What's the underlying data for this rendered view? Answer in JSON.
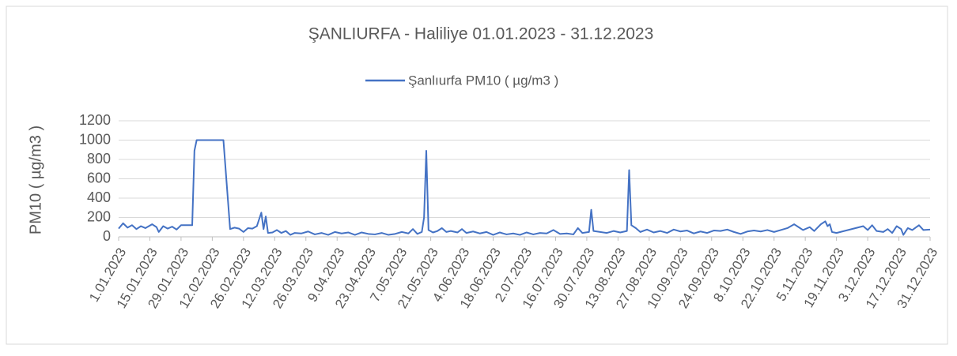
{
  "chart_data": {
    "type": "line",
    "title": "ŞANLIURFA - Haliliye 01.01.2023 - 31.12.2023",
    "ylabel": "PM10 ( µg/m3 )",
    "series": [
      {
        "name": "Şanlıurfa PM10 ( µg/m3 )",
        "color": "#4472c4",
        "x": [
          "1.01.2023",
          "3.01.2023",
          "5.01.2023",
          "7.01.2023",
          "9.01.2023",
          "11.01.2023",
          "13.01.2023",
          "16.01.2023",
          "18.01.2023",
          "19.01.2023",
          "21.01.2023",
          "23.01.2023",
          "25.01.2023",
          "27.01.2023",
          "29.01.2023",
          "1.02.2023",
          "3.02.2023",
          "4.02.2023",
          "5.02.2023",
          "17.02.2023",
          "20.02.2023",
          "22.02.2023",
          "24.02.2023",
          "26.02.2023",
          "28.02.2023",
          "2.03.2023",
          "4.03.2023",
          "6.03.2023",
          "7.03.2023",
          "8.03.2023",
          "9.03.2023",
          "11.03.2023",
          "13.03.2023",
          "15.03.2023",
          "17.03.2023",
          "19.03.2023",
          "21.03.2023",
          "24.03.2023",
          "27.03.2023",
          "30.03.2023",
          "2.04.2023",
          "5.04.2023",
          "8.04.2023",
          "11.04.2023",
          "14.04.2023",
          "17.04.2023",
          "20.04.2023",
          "23.04.2023",
          "26.04.2023",
          "29.04.2023",
          "2.05.2023",
          "5.05.2023",
          "8.05.2023",
          "11.05.2023",
          "13.05.2023",
          "15.05.2023",
          "17.05.2023",
          "18.05.2023",
          "19.05.2023",
          "20.05.2023",
          "22.05.2023",
          "24.05.2023",
          "26.05.2023",
          "28.05.2023",
          "30.05.2023",
          "2.06.2023",
          "4.06.2023",
          "6.06.2023",
          "9.06.2023",
          "12.06.2023",
          "15.06.2023",
          "18.06.2023",
          "21.06.2023",
          "24.06.2023",
          "27.06.2023",
          "30.06.2023",
          "3.07.2023",
          "6.07.2023",
          "9.07.2023",
          "12.07.2023",
          "15.07.2023",
          "18.07.2023",
          "21.07.2023",
          "24.07.2023",
          "26.07.2023",
          "28.07.2023",
          "31.07.2023",
          "1.08.2023",
          "2.08.2023",
          "5.08.2023",
          "8.08.2023",
          "11.08.2023",
          "14.08.2023",
          "17.08.2023",
          "18.08.2023",
          "19.08.2023",
          "21.08.2023",
          "23.08.2023",
          "26.08.2023",
          "29.08.2023",
          "1.09.2023",
          "4.09.2023",
          "7.09.2023",
          "10.09.2023",
          "13.09.2023",
          "16.09.2023",
          "19.09.2023",
          "22.09.2023",
          "25.09.2023",
          "28.09.2023",
          "1.10.2023",
          "4.10.2023",
          "7.10.2023",
          "10.10.2023",
          "13.10.2023",
          "16.10.2023",
          "19.10.2023",
          "22.10.2023",
          "25.10.2023",
          "28.10.2023",
          "31.10.2023",
          "2.11.2023",
          "4.11.2023",
          "7.11.2023",
          "9.11.2023",
          "12.11.2023",
          "14.11.2023",
          "15.11.2023",
          "16.11.2023",
          "17.11.2023",
          "19.11.2023",
          "1.12.2023",
          "3.12.2023",
          "5.12.2023",
          "7.12.2023",
          "10.12.2023",
          "12.12.2023",
          "14.12.2023",
          "16.12.2023",
          "18.12.2023",
          "19.12.2023",
          "21.12.2023",
          "23.12.2023",
          "26.12.2023",
          "28.12.2023",
          "31.12.2023"
        ],
        "values": [
          85,
          140,
          95,
          120,
          80,
          110,
          90,
          130,
          100,
          50,
          110,
          85,
          105,
          75,
          120,
          120,
          120,
          890,
          1000,
          1000,
          80,
          95,
          85,
          50,
          90,
          85,
          110,
          250,
          80,
          210,
          40,
          45,
          70,
          40,
          60,
          20,
          40,
          35,
          55,
          25,
          40,
          20,
          50,
          35,
          45,
          20,
          45,
          30,
          25,
          40,
          20,
          30,
          50,
          35,
          80,
          30,
          50,
          200,
          890,
          70,
          45,
          60,
          90,
          50,
          60,
          45,
          80,
          40,
          55,
          35,
          50,
          20,
          45,
          25,
          35,
          20,
          45,
          25,
          40,
          35,
          70,
          30,
          35,
          25,
          90,
          40,
          50,
          280,
          60,
          50,
          40,
          60,
          45,
          60,
          690,
          120,
          90,
          50,
          75,
          45,
          60,
          40,
          75,
          55,
          65,
          35,
          55,
          40,
          65,
          60,
          75,
          50,
          30,
          55,
          65,
          55,
          70,
          50,
          70,
          90,
          130,
          100,
          70,
          100,
          60,
          130,
          160,
          110,
          130,
          50,
          40,
          110,
          70,
          120,
          60,
          50,
          80,
          40,
          110,
          80,
          20,
          90,
          70,
          120,
          70,
          75
        ]
      }
    ],
    "xlim": [
      "1.01.2023",
      "31.12.2023"
    ],
    "xticks": [
      "1.01.2023",
      "15.01.2023",
      "29.01.2023",
      "12.02.2023",
      "26.02.2023",
      "12.03.2023",
      "26.03.2023",
      "9.04.2023",
      "23.04.2023",
      "7.05.2023",
      "21.05.2023",
      "4.06.2023",
      "18.06.2023",
      "2.07.2023",
      "16.07.2023",
      "30.07.2023",
      "13.08.2023",
      "27.08.2023",
      "10.09.2023",
      "24.09.2023",
      "8.10.2023",
      "22.10.2023",
      "5.11.2023",
      "19.11.2023",
      "3.12.2023",
      "17.12.2023",
      "31.12.2023"
    ],
    "ylim": [
      0,
      1200
    ],
    "yticks": [
      0,
      200,
      400,
      600,
      800,
      1000,
      1200
    ],
    "grid": true
  }
}
